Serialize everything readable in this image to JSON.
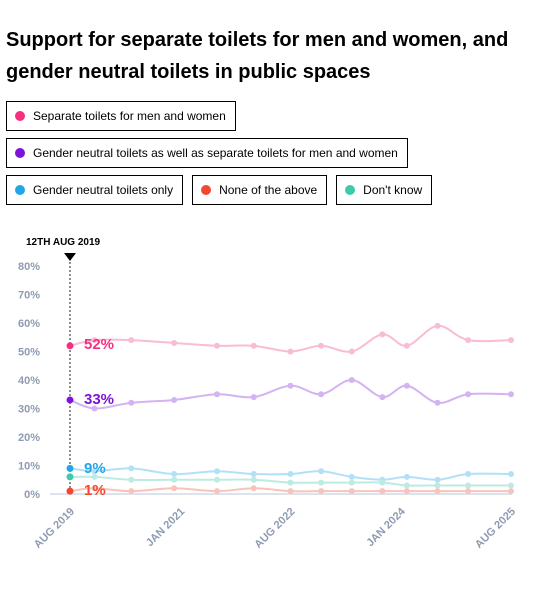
{
  "title": "Support for separate toilets for men and women, and gender neutral toilets in public spaces",
  "legend": [
    [
      {
        "label": "Separate toilets for men and women",
        "color": "#f72f7f"
      }
    ],
    [
      {
        "label": "Gender neutral toilets as well as separate toilets for men and women",
        "color": "#7f12d9"
      }
    ],
    [
      {
        "label": "Gender neutral toilets only",
        "color": "#22a6e8"
      },
      {
        "label": "None of the above",
        "color": "#f2482f"
      },
      {
        "label": "Don't know",
        "color": "#3dc9ab"
      }
    ]
  ],
  "chart_data": {
    "type": "line",
    "annotation": "12TH AUG 2019",
    "y_ticks": [
      "0%",
      "10%",
      "20%",
      "30%",
      "40%",
      "50%",
      "60%",
      "70%",
      "80%"
    ],
    "ylim": [
      0,
      80
    ],
    "x_ticks": [
      "AUG 2019",
      "JAN 2021",
      "AUG 2022",
      "JAN 2024",
      "AUG 2025"
    ],
    "x": [
      "2019-08",
      "2019-12",
      "2020-06",
      "2021-01",
      "2021-08",
      "2022-02",
      "2022-08",
      "2023-01",
      "2023-06",
      "2023-11",
      "2024-03",
      "2024-08",
      "2025-01",
      "2025-08"
    ],
    "series": [
      {
        "name": "Separate toilets for men and women",
        "color": "#f72f7f",
        "light": "#f9bcd6",
        "label": "52%",
        "values": [
          52,
          54,
          54,
          53,
          52,
          52,
          50,
          52,
          50,
          56,
          52,
          59,
          54,
          54
        ]
      },
      {
        "name": "Gender neutral toilets as well as separate toilets for men and women",
        "color": "#7f12d9",
        "light": "#d3b3f2",
        "label": "33%",
        "values": [
          33,
          30,
          32,
          33,
          35,
          34,
          38,
          35,
          40,
          34,
          38,
          32,
          35,
          35
        ]
      },
      {
        "name": "Gender neutral toilets only",
        "color": "#22a6e8",
        "light": "#b2e0f7",
        "label": "9%",
        "values": [
          9,
          8,
          9,
          7,
          8,
          7,
          7,
          8,
          6,
          5,
          6,
          5,
          7,
          7
        ]
      },
      {
        "name": "Don't know",
        "color": "#3dc9ab",
        "light": "#bdebe1",
        "label": "",
        "values": [
          6,
          6,
          5,
          5,
          5,
          5,
          4,
          4,
          4,
          4,
          3,
          3,
          3,
          3
        ]
      },
      {
        "name": "None of the above",
        "color": "#f2482f",
        "light": "#f9c3bb",
        "label": "1%",
        "values": [
          1,
          2,
          1,
          2,
          1,
          2,
          1,
          1,
          1,
          1,
          1,
          1,
          1,
          1
        ]
      }
    ]
  }
}
